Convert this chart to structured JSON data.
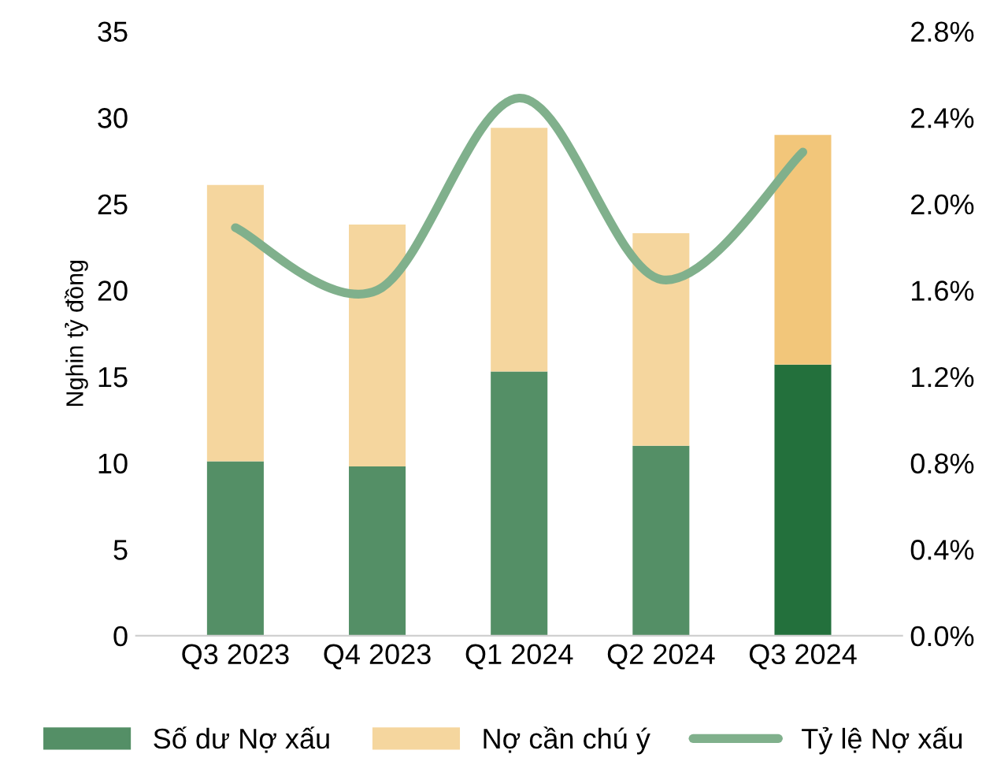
{
  "chart_data": {
    "type": "bar",
    "stacked": true,
    "ylabel": "Nghin tỷ đồng",
    "categories": [
      "Q3 2023",
      "Q4 2023",
      "Q1 2024",
      "Q2 2024",
      "Q3 2024"
    ],
    "series": [
      {
        "name": "Số dư Nợ xấu",
        "color": "#548f66",
        "colors": [
          "#548f66",
          "#548f66",
          "#548f66",
          "#548f66",
          "#23703c"
        ],
        "values": [
          10.1,
          9.8,
          15.3,
          11.0,
          15.7
        ]
      },
      {
        "name": "Nợ cần chú ý",
        "color": "#f5d69e",
        "colors": [
          "#f5d69e",
          "#f5d69e",
          "#f5d69e",
          "#f5d69e",
          "#f2c67a"
        ],
        "values": [
          16.0,
          14.0,
          14.1,
          12.3,
          13.3
        ]
      },
      {
        "name": "Tỷ lệ Nợ xấu",
        "type": "line",
        "axis": "y2",
        "color": "#80b08c",
        "values": [
          1.89,
          1.6,
          2.49,
          1.65,
          2.24
        ]
      }
    ],
    "ylim": [
      0,
      35
    ],
    "yticks": [
      0,
      5,
      10,
      15,
      20,
      25,
      30,
      35
    ],
    "y2lim": [
      0,
      2.8
    ],
    "y2ticks": [
      {
        "value": 0,
        "label": "0.0%"
      },
      {
        "value": 0.4,
        "label": "0.4%"
      },
      {
        "value": 0.8,
        "label": "0.8%"
      },
      {
        "value": 1.2,
        "label": "1.2%"
      },
      {
        "value": 1.6,
        "label": "1.6%"
      },
      {
        "value": 2.0,
        "label": "2.0%"
      },
      {
        "value": 2.4,
        "label": "2.4%"
      },
      {
        "value": 2.8,
        "label": "2.8%"
      }
    ],
    "grid": false,
    "legend": "bottom"
  }
}
